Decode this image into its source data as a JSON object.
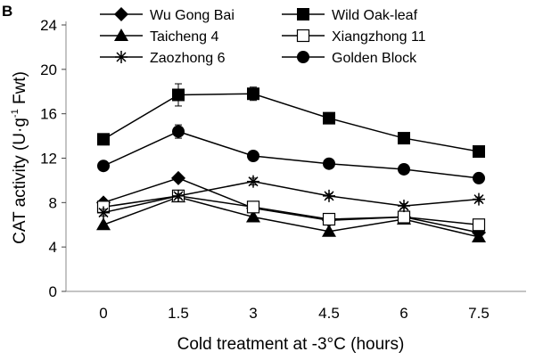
{
  "chart_data": {
    "type": "line",
    "panel_label": "B",
    "xlabel": "Cold treatment at -3°C (hours)",
    "ylabel_main": "CAT activity (U·g",
    "ylabel_sup": "-1",
    "ylabel_end": " Fwt)",
    "x": [
      0,
      1.5,
      3,
      4.5,
      6,
      7.5
    ],
    "x_tick_labels": [
      "0",
      "1.5",
      "3",
      "4.5",
      "6",
      "7.5"
    ],
    "ylim": [
      0,
      24
    ],
    "y_ticks": [
      0,
      4,
      8,
      12,
      16,
      20,
      24
    ],
    "y_tick_labels": [
      "0",
      "4",
      "8",
      "12",
      "16",
      "20",
      "24"
    ],
    "grid": false,
    "legend_position": "top",
    "series": [
      {
        "name": "Wu Gong Bai",
        "marker": "diamond",
        "values": [
          8.0,
          10.2,
          7.5,
          6.4,
          6.7,
          5.3
        ],
        "errors": [
          0,
          0,
          0,
          0,
          0,
          0
        ]
      },
      {
        "name": "Wild Oak-leaf",
        "marker": "square",
        "values": [
          13.7,
          17.7,
          17.8,
          15.6,
          13.8,
          12.6
        ],
        "errors": [
          0.5,
          1.0,
          0.6,
          0.5,
          0.4,
          0.4
        ]
      },
      {
        "name": "Taicheng 4",
        "marker": "triangle",
        "values": [
          6.0,
          8.5,
          6.7,
          5.4,
          6.5,
          4.9
        ],
        "errors": [
          0,
          0,
          0,
          0,
          0,
          0
        ]
      },
      {
        "name": "Xiangzhong 11",
        "marker": "open-square",
        "values": [
          7.6,
          8.6,
          7.6,
          6.5,
          6.7,
          6.0
        ],
        "errors": [
          0,
          0,
          0,
          0,
          0,
          0
        ]
      },
      {
        "name": "Zaozhong 6",
        "marker": "star",
        "values": [
          7.1,
          8.6,
          9.9,
          8.6,
          7.7,
          8.3
        ],
        "errors": [
          0.3,
          0.2,
          0.3,
          0.2,
          0.2,
          0.2
        ]
      },
      {
        "name": "Golden Block",
        "marker": "circle",
        "values": [
          11.3,
          14.4,
          12.2,
          11.5,
          11.0,
          10.2
        ],
        "errors": [
          0.4,
          0.6,
          0.2,
          0.3,
          0.3,
          0.3
        ]
      }
    ]
  }
}
